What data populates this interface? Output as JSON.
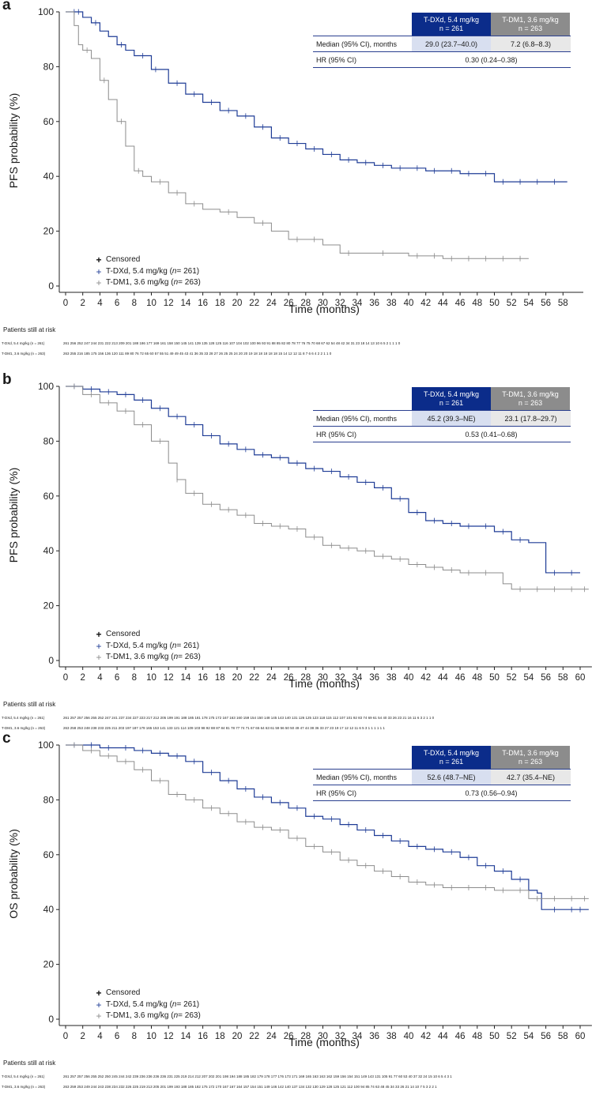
{
  "chart_data": [
    {
      "type": "line",
      "panel": "a",
      "ylabel": "PFS probability (%)",
      "xlabel": "Time (months)",
      "xlim": [
        0,
        60
      ],
      "ylim": [
        0,
        100
      ],
      "xticks": [
        "0",
        "2",
        "4",
        "6",
        "8",
        "10",
        "12",
        "14",
        "16",
        "18",
        "20",
        "22",
        "24",
        "26",
        "28",
        "30",
        "32",
        "34",
        "36",
        "38",
        "40",
        "42",
        "44",
        "46",
        "48",
        "50",
        "52",
        "54",
        "56",
        "58"
      ],
      "yticks": [
        "0",
        "20",
        "40",
        "60",
        "80",
        "100"
      ],
      "legend": {
        "censored": "Censored",
        "dxd": "T-DXd, 5.4 mg/kg (",
        "dm1": "T-DM1, 3.6 mg/kg (",
        "n_italic": "n",
        "dxd_n": " = 261)",
        "dm1_n": " = 263)"
      },
      "table": {
        "dxd_header": "T-DXd, 5.4 mg/kg",
        "dm1_header": "T-DM1, 3.6 mg/kg",
        "dxd_n": "n = 261",
        "dm1_n": "n = 263",
        "median_label": "Median (95% CI), months",
        "dxd_median": "29.0 (23.7–40.0)",
        "dm1_median": "7.2 (6.8–8.3)",
        "hr_label": "HR (95% CI)",
        "hr": "0.30 (0.24–0.38)"
      },
      "risk_title": "Patients still at risk",
      "risk_dxd_label": "T-DXd, 5.4 mg/kg (n = 261)",
      "risk_dm1_label": "T-DM1, 3.6 mg/kg (n = 263)",
      "risk_dxd": "261 256 252 247 244 231 222 213 209 201 188 186 177 169 161 158 150 145 141 139 135 128 125 116 107 104 102 100 96 93 91 88 85 82 80 78 77 76 75 70 68 67 62 54 48 42 34 31 23 18 14 13 10 6 5 2 1 1 1 0",
      "risk_dm1": "263 255 216 185 175 156 136 120 111 89 80 76 72 65 60 57 55 51 49 49 45 43 41 36 35 33 28 27 26 25 25 24 20 20 19 18 18 18 18 18 15 14 12 12 11 8 7 6 6 4 2 2 1 1 0",
      "series": [
        {
          "name": "T-DXd, 5.4 mg/kg",
          "color": "#1f3c96",
          "x": [
            0,
            2,
            3,
            4,
            5,
            6,
            7,
            8,
            10,
            12,
            14,
            16,
            18,
            20,
            22,
            24,
            26,
            28,
            30,
            32,
            34,
            36,
            38,
            40,
            42,
            44,
            46,
            48,
            50,
            52,
            54,
            58.5
          ],
          "y": [
            100,
            98,
            96,
            93,
            91,
            88,
            86,
            84,
            79,
            74,
            70,
            67,
            64,
            62,
            58,
            54,
            52,
            50,
            48,
            46,
            45,
            44,
            43,
            43,
            42,
            42,
            41,
            41,
            38,
            38,
            38,
            38
          ],
          "censor_x": [
            1,
            1.5,
            3.5,
            6.5,
            9,
            10.5,
            13,
            15,
            17,
            19,
            21,
            23,
            25,
            27,
            29,
            31,
            33,
            35,
            37,
            39,
            41,
            43,
            45,
            47,
            49,
            51,
            53,
            55,
            57
          ]
        },
        {
          "name": "T-DM1, 3.6 mg/kg",
          "color": "#8c8c8c",
          "x": [
            0,
            1,
            1.5,
            2,
            3,
            4,
            5,
            6,
            7,
            8,
            9,
            10,
            12,
            14,
            16,
            18,
            20,
            22,
            24,
            26,
            28,
            30,
            32,
            34,
            36,
            38,
            40,
            42,
            44,
            46,
            50,
            54
          ],
          "y": [
            100,
            95,
            88,
            86,
            83,
            75,
            68,
            60,
            51,
            42,
            40,
            38,
            34,
            30,
            28,
            27,
            25,
            23,
            20,
            17,
            17,
            15,
            12,
            12,
            12,
            12,
            11,
            11,
            10,
            10,
            10,
            10
          ],
          "censor_x": [
            2.5,
            4.5,
            6.5,
            8.5,
            11,
            13,
            15,
            19,
            23,
            27,
            29,
            33,
            37,
            41,
            43,
            45,
            47,
            49,
            51,
            53
          ]
        }
      ]
    },
    {
      "type": "line",
      "panel": "b",
      "ylabel": "PFS probability (%)",
      "xlabel": "Time (months)",
      "xlim": [
        0,
        61
      ],
      "ylim": [
        0,
        100
      ],
      "xticks": [
        "0",
        "2",
        "4",
        "6",
        "8",
        "10",
        "12",
        "14",
        "16",
        "18",
        "20",
        "22",
        "24",
        "26",
        "28",
        "30",
        "32",
        "34",
        "36",
        "38",
        "40",
        "42",
        "44",
        "46",
        "48",
        "50",
        "52",
        "54",
        "56",
        "58",
        "60"
      ],
      "yticks": [
        "0",
        "20",
        "40",
        "60",
        "80",
        "100"
      ],
      "legend": {
        "censored": "Censored",
        "dxd": "T-DXd, 5.4 mg/kg (",
        "dm1": "T-DM1, 3.6 mg/kg (",
        "n_italic": "n",
        "dxd_n": " = 261)",
        "dm1_n": " = 263)"
      },
      "table": {
        "dxd_header": "T-DXd, 5.4 mg/kg",
        "dm1_header": "T-DM1, 3.6 mg/kg",
        "dxd_n": "n = 261",
        "dm1_n": "n = 263",
        "median_label": "Median (95% CI), months",
        "dxd_median": "45.2 (39.3–NE)",
        "dm1_median": "23.1 (17.8–29.7)",
        "hr_label": "HR (95% CI)",
        "hr": "0.53 (0.41–0.68)"
      },
      "risk_title": "Patients still at risk",
      "risk_dxd_label": "T-DXd, 5.4 mg/kg (n = 261)",
      "risk_dm1_label": "T-DM1, 3.6 mg/kg (n = 263)",
      "risk_dxd": "261 257 257 256 255 252 247 241 237 234 227 223 217 212 205 199 191 188 185 181 178 175 172 167 163 160 159 154 150 148 145 143 140 131 126 125 123 118 115 112 107 101 92 83 74 69 61 54 40 33 26 23 21 16 11 6 3 2 1 1 0",
      "risk_dm1": "263 258 253 248 238 233 225 211 203 197 187 179 165 153 141 133 121 114 109 103 98 92 88 87 84 81 78 77 74 71 67 65 64 63 61 59 56 50 50 49 47 44 38 36 33 27 23 19 17 12 12 11 6 5 3 1 1 1 1 1 1",
      "series": [
        {
          "name": "T-DXd, 5.4 mg/kg",
          "color": "#1f3c96",
          "x": [
            0,
            2,
            4,
            6,
            8,
            10,
            12,
            14,
            16,
            18,
            20,
            22,
            24,
            26,
            28,
            30,
            32,
            34,
            36,
            38,
            40,
            42,
            44,
            46,
            48,
            50,
            52,
            54,
            55.5,
            56,
            58,
            60
          ],
          "y": [
            100,
            99,
            98,
            97,
            95,
            92,
            89,
            86,
            82,
            79,
            77,
            75,
            74,
            72,
            70,
            69,
            67,
            65,
            63,
            59,
            54,
            51,
            50,
            49,
            49,
            47,
            44,
            43,
            43,
            32,
            32,
            32
          ],
          "censor_x": [
            1,
            3,
            5,
            7,
            9,
            11,
            13,
            15,
            17,
            19,
            21,
            23,
            25,
            27,
            29,
            31,
            33,
            35,
            37,
            39,
            41,
            43,
            45,
            47,
            49,
            51,
            53,
            57,
            59
          ]
        },
        {
          "name": "T-DM1, 3.6 mg/kg",
          "color": "#8c8c8c",
          "x": [
            0,
            2,
            4,
            6,
            8,
            10,
            12,
            13,
            14,
            16,
            18,
            20,
            22,
            24,
            26,
            28,
            30,
            32,
            34,
            36,
            38,
            40,
            42,
            44,
            46,
            48,
            50,
            51,
            52,
            54,
            56,
            58,
            61
          ],
          "y": [
            100,
            97,
            94,
            91,
            86,
            80,
            72,
            66,
            61,
            57,
            55,
            53,
            50,
            49,
            48,
            45,
            42,
            41,
            40,
            38,
            37,
            35,
            34,
            33,
            32,
            32,
            32,
            28,
            26,
            26,
            26,
            26,
            26
          ],
          "censor_x": [
            1,
            3,
            5,
            7,
            9,
            11,
            13,
            15,
            17,
            19,
            21,
            23,
            25,
            27,
            29,
            31,
            33,
            35,
            37,
            39,
            41,
            43,
            45,
            47,
            49,
            53,
            55,
            57,
            59,
            60.5
          ]
        }
      ]
    },
    {
      "type": "line",
      "panel": "c",
      "ylabel": "OS probability (%)",
      "xlabel": "Time (months)",
      "xlim": [
        0,
        61
      ],
      "ylim": [
        0,
        100
      ],
      "xticks": [
        "0",
        "2",
        "4",
        "6",
        "8",
        "10",
        "12",
        "14",
        "16",
        "18",
        "20",
        "22",
        "24",
        "26",
        "28",
        "30",
        "32",
        "34",
        "36",
        "38",
        "40",
        "42",
        "44",
        "46",
        "48",
        "50",
        "52",
        "54",
        "56",
        "58",
        "60"
      ],
      "yticks": [
        "0",
        "20",
        "40",
        "60",
        "80",
        "100"
      ],
      "legend": {
        "censored": "Censored",
        "dxd": "T-DXd, 5.4 mg/kg (",
        "dm1": "T-DM1, 3.6 mg/kg (",
        "n_italic": "n",
        "dxd_n": " = 261)",
        "dm1_n": " = 263)"
      },
      "table": {
        "dxd_header": "T-DXd, 5.4 mg/kg",
        "dm1_header": "T-DM1, 3.6 mg/kg",
        "dxd_n": "n = 261",
        "dm1_n": "n = 263",
        "median_label": "Median (95% CI), months",
        "dxd_median": "52.6 (48.7–NE)",
        "dm1_median": "42.7 (35.4–NE)",
        "hr_label": "HR (95% CI)",
        "hr": "0.73 (0.56–0.94)"
      },
      "risk_title": "Patients still at risk",
      "risk_dxd_label": "T-DXd, 5.4 mg/kg (n = 261)",
      "risk_dm1_label": "T-DM1, 3.6 mg/kg (n = 263)",
      "risk_dxd": "261 257 257 256 255 252 250 245 244 242 239 236 236 236 236 231 225 219 214 212 207 202 201 198 194 188 185 182 179 178 177 176 173 171 169 165 163 163 162 159 156 154 151 149 143 131 105 91 77 60 53 40 37 32 24 15 10 6 5 4 3 1",
      "risk_dm1": "263 259 253 249 244 243 238 234 232 226 225 219 213 205 201 199 193 188 185 182 175 172 170 167 167 164 157 154 151 149 146 142 140 137 134 132 130 129 128 125 121 112 100 94 85 74 63 48 45 34 33 26 21 14 10 7 5 3 2 2 1",
      "series": [
        {
          "name": "T-DXd, 5.4 mg/kg",
          "color": "#1f3c96",
          "x": [
            0,
            2,
            4,
            6,
            8,
            10,
            12,
            14,
            16,
            18,
            20,
            22,
            24,
            26,
            28,
            30,
            32,
            34,
            36,
            38,
            40,
            42,
            44,
            46,
            48,
            50,
            52,
            54,
            55,
            55.5,
            58,
            61
          ],
          "y": [
            100,
            100,
            99,
            99,
            98,
            97,
            96,
            94,
            90,
            87,
            84,
            81,
            79,
            77,
            74,
            73,
            71,
            69,
            67,
            65,
            63,
            62,
            61,
            59,
            56,
            54,
            51,
            47,
            46,
            40,
            40,
            40
          ],
          "censor_x": [
            1,
            3,
            5,
            7,
            9,
            11,
            13,
            15,
            17,
            19,
            21,
            23,
            25,
            27,
            29,
            31,
            33,
            35,
            37,
            39,
            41,
            43,
            45,
            47,
            49,
            51,
            53,
            57,
            59,
            60
          ]
        },
        {
          "name": "T-DM1, 3.6 mg/kg",
          "color": "#8c8c8c",
          "x": [
            0,
            2,
            4,
            6,
            8,
            10,
            12,
            14,
            16,
            18,
            20,
            22,
            24,
            26,
            28,
            30,
            32,
            34,
            36,
            38,
            40,
            42,
            44,
            46,
            48,
            50,
            52,
            54,
            56,
            58,
            61
          ],
          "y": [
            100,
            98,
            96,
            94,
            91,
            87,
            82,
            80,
            77,
            75,
            72,
            70,
            69,
            66,
            63,
            61,
            58,
            56,
            54,
            52,
            50,
            49,
            48,
            48,
            48,
            47,
            47,
            44,
            44,
            44,
            44
          ],
          "censor_x": [
            1,
            3,
            5,
            7,
            9,
            11,
            13,
            15,
            17,
            19,
            21,
            23,
            25,
            27,
            29,
            31,
            33,
            35,
            37,
            39,
            41,
            43,
            45,
            47,
            49,
            51,
            53,
            55,
            57,
            59,
            60.5
          ]
        }
      ]
    }
  ],
  "panel_letters": [
    "a",
    "b",
    "c"
  ]
}
